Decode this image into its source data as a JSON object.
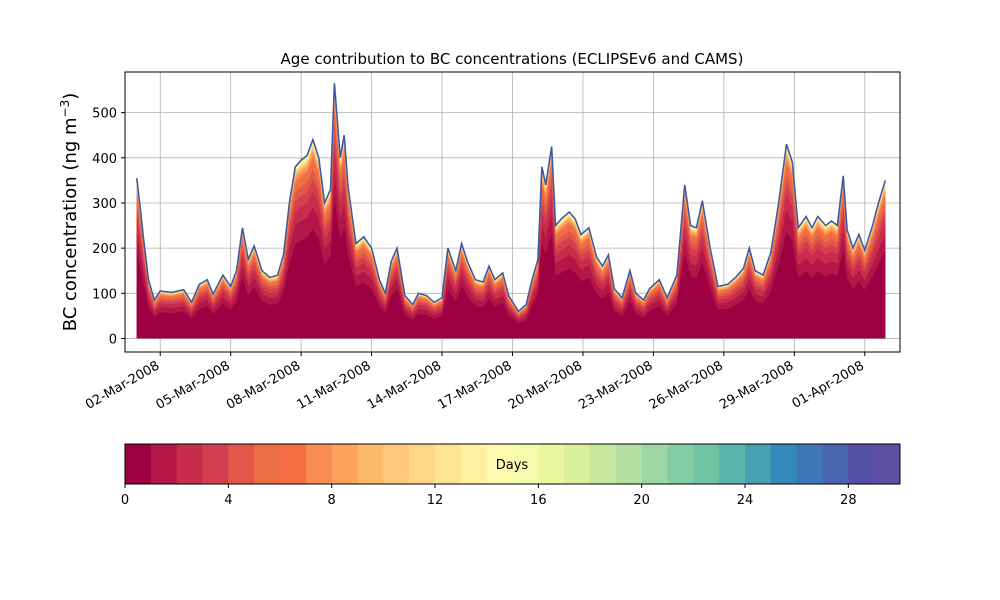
{
  "chart_data": {
    "type": "area",
    "title": "Age contribution to BC concentrations (ECLIPSEv6 and CAMS)",
    "ylabel_main": "BC concentration (ng m",
    "ylabel_sup": "−3",
    "ylabel_close": ")",
    "xlabel": "",
    "ylim": [
      -30,
      590
    ],
    "yticks": [
      0,
      100,
      200,
      300,
      400,
      500
    ],
    "x_start": "2008-02-29T12:00",
    "x_end": "2008-04-02T12:00",
    "xtick_labels": [
      "02-Mar-2008",
      "05-Mar-2008",
      "08-Mar-2008",
      "11-Mar-2008",
      "14-Mar-2008",
      "17-Mar-2008",
      "20-Mar-2008",
      "23-Mar-2008",
      "26-Mar-2008",
      "29-Mar-2008",
      "01-Apr-2008"
    ],
    "xtick_dates": [
      "2008-03-02",
      "2008-03-05",
      "2008-03-08",
      "2008-03-11",
      "2008-03-14",
      "2008-03-17",
      "2008-03-20",
      "2008-03-23",
      "2008-03-26",
      "2008-03-29",
      "2008-04-01"
    ],
    "grid": true,
    "total_series": {
      "name": "",
      "points": [
        [
          "2008-03-01T00:00",
          355
        ],
        [
          "2008-03-01T03:00",
          300
        ],
        [
          "2008-03-01T07:00",
          220
        ],
        [
          "2008-03-01T12:00",
          130
        ],
        [
          "2008-03-01T18:00",
          85
        ],
        [
          "2008-03-02T00:00",
          105
        ],
        [
          "2008-03-02T12:00",
          102
        ],
        [
          "2008-03-03T00:00",
          108
        ],
        [
          "2008-03-03T08:00",
          80
        ],
        [
          "2008-03-03T16:00",
          120
        ],
        [
          "2008-03-04T00:00",
          130
        ],
        [
          "2008-03-04T06:00",
          98
        ],
        [
          "2008-03-04T16:00",
          140
        ],
        [
          "2008-03-05T00:00",
          115
        ],
        [
          "2008-03-05T06:00",
          150
        ],
        [
          "2008-03-05T12:00",
          245
        ],
        [
          "2008-03-05T18:00",
          175
        ],
        [
          "2008-03-06T00:00",
          205
        ],
        [
          "2008-03-06T08:00",
          150
        ],
        [
          "2008-03-06T16:00",
          135
        ],
        [
          "2008-03-07T00:00",
          140
        ],
        [
          "2008-03-07T06:00",
          185
        ],
        [
          "2008-03-07T12:00",
          300
        ],
        [
          "2008-03-07T18:00",
          380
        ],
        [
          "2008-03-08T00:00",
          395
        ],
        [
          "2008-03-08T06:00",
          405
        ],
        [
          "2008-03-08T12:00",
          440
        ],
        [
          "2008-03-08T18:00",
          400
        ],
        [
          "2008-03-09T00:00",
          300
        ],
        [
          "2008-03-09T06:00",
          330
        ],
        [
          "2008-03-09T10:00",
          565
        ],
        [
          "2008-03-09T16:00",
          400
        ],
        [
          "2008-03-09T20:00",
          450
        ],
        [
          "2008-03-10T00:00",
          335
        ],
        [
          "2008-03-10T08:00",
          210
        ],
        [
          "2008-03-10T16:00",
          225
        ],
        [
          "2008-03-11T00:00",
          200
        ],
        [
          "2008-03-11T08:00",
          130
        ],
        [
          "2008-03-11T14:00",
          100
        ],
        [
          "2008-03-11T20:00",
          170
        ],
        [
          "2008-03-12T02:00",
          200
        ],
        [
          "2008-03-12T10:00",
          95
        ],
        [
          "2008-03-12T18:00",
          75
        ],
        [
          "2008-03-13T00:00",
          100
        ],
        [
          "2008-03-13T08:00",
          95
        ],
        [
          "2008-03-13T16:00",
          80
        ],
        [
          "2008-03-14T00:00",
          90
        ],
        [
          "2008-03-14T06:00",
          200
        ],
        [
          "2008-03-14T14:00",
          150
        ],
        [
          "2008-03-14T20:00",
          210
        ],
        [
          "2008-03-15T02:00",
          170
        ],
        [
          "2008-03-15T10:00",
          130
        ],
        [
          "2008-03-15T18:00",
          125
        ],
        [
          "2008-03-16T00:00",
          160
        ],
        [
          "2008-03-16T06:00",
          130
        ],
        [
          "2008-03-16T14:00",
          145
        ],
        [
          "2008-03-16T20:00",
          95
        ],
        [
          "2008-03-17T06:00",
          60
        ],
        [
          "2008-03-17T14:00",
          75
        ],
        [
          "2008-03-17T20:00",
          130
        ],
        [
          "2008-03-18T02:00",
          175
        ],
        [
          "2008-03-18T06:00",
          380
        ],
        [
          "2008-03-18T10:00",
          340
        ],
        [
          "2008-03-18T16:00",
          425
        ],
        [
          "2008-03-18T20:00",
          250
        ],
        [
          "2008-03-19T02:00",
          265
        ],
        [
          "2008-03-19T10:00",
          280
        ],
        [
          "2008-03-19T16:00",
          265
        ],
        [
          "2008-03-19T22:00",
          230
        ],
        [
          "2008-03-20T06:00",
          245
        ],
        [
          "2008-03-20T14:00",
          180
        ],
        [
          "2008-03-20T20:00",
          160
        ],
        [
          "2008-03-21T02:00",
          185
        ],
        [
          "2008-03-21T08:00",
          110
        ],
        [
          "2008-03-21T16:00",
          90
        ],
        [
          "2008-03-22T00:00",
          150
        ],
        [
          "2008-03-22T06:00",
          100
        ],
        [
          "2008-03-22T14:00",
          85
        ],
        [
          "2008-03-22T20:00",
          110
        ],
        [
          "2008-03-23T06:00",
          130
        ],
        [
          "2008-03-23T14:00",
          90
        ],
        [
          "2008-03-24T00:00",
          140
        ],
        [
          "2008-03-24T08:00",
          340
        ],
        [
          "2008-03-24T14:00",
          250
        ],
        [
          "2008-03-24T20:00",
          245
        ],
        [
          "2008-03-25T02:00",
          305
        ],
        [
          "2008-03-25T10:00",
          200
        ],
        [
          "2008-03-25T18:00",
          115
        ],
        [
          "2008-03-26T04:00",
          120
        ],
        [
          "2008-03-26T12:00",
          135
        ],
        [
          "2008-03-26T20:00",
          155
        ],
        [
          "2008-03-27T02:00",
          200
        ],
        [
          "2008-03-27T08:00",
          150
        ],
        [
          "2008-03-27T16:00",
          140
        ],
        [
          "2008-03-28T00:00",
          190
        ],
        [
          "2008-03-28T08:00",
          300
        ],
        [
          "2008-03-28T16:00",
          430
        ],
        [
          "2008-03-28T22:00",
          390
        ],
        [
          "2008-03-29T04:00",
          245
        ],
        [
          "2008-03-29T12:00",
          270
        ],
        [
          "2008-03-29T18:00",
          245
        ],
        [
          "2008-03-30T00:00",
          270
        ],
        [
          "2008-03-30T08:00",
          250
        ],
        [
          "2008-03-30T14:00",
          260
        ],
        [
          "2008-03-30T20:00",
          250
        ],
        [
          "2008-03-31T02:00",
          360
        ],
        [
          "2008-03-31T06:00",
          240
        ],
        [
          "2008-03-31T12:00",
          200
        ],
        [
          "2008-03-31T18:00",
          230
        ],
        [
          "2008-04-01T00:00",
          195
        ],
        [
          "2008-04-01T08:00",
          250
        ],
        [
          "2008-04-01T14:00",
          300
        ],
        [
          "2008-04-01T21:00",
          350
        ]
      ]
    },
    "colorbar": {
      "label": "Days",
      "range": [
        0,
        30
      ],
      "bins": 30,
      "ticks": [
        0,
        4,
        8,
        12,
        16,
        20,
        24,
        28
      ],
      "colormap": "Spectral",
      "colors": [
        "#9e0142",
        "#b41747",
        "#c82c4b",
        "#d53e4f",
        "#e15849",
        "#ec6e45",
        "#f46d43",
        "#f88c51",
        "#fba15b",
        "#fdb96a",
        "#fec77a",
        "#fed686",
        "#fee594",
        "#fef0a0",
        "#fffcb2",
        "#f5fbae",
        "#eaf79e",
        "#daf09a",
        "#c7e89e",
        "#b3e0a2",
        "#9dd7a4",
        "#84cda4",
        "#6fc4a4",
        "#5ab4ab",
        "#479fb2",
        "#3489bd",
        "#3e77b6",
        "#4965ae",
        "#5550a6",
        "#5e4fa2"
      ]
    },
    "line_color": "#4159a0"
  }
}
